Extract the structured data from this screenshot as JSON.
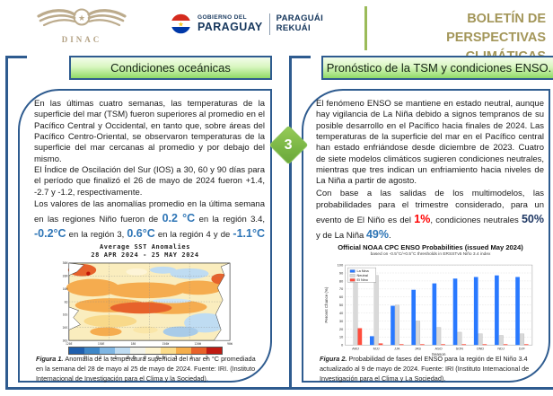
{
  "header": {
    "dinac_label": "DINAC",
    "government_logo": {
      "line1_small": "GOBIERNO DEL",
      "line1_large": "PARAGUAY",
      "line2_top": "PARAGUÁI",
      "line2_bottom": "REKUÁI"
    },
    "bulletin_title_line1": "BOLETÍN DE PERSPECTIVAS",
    "bulletin_title_line2": "CLIMÁTICAS"
  },
  "step_badge": "3",
  "colors": {
    "accent_navy": "#2E5B8F",
    "title_gold": "#A39659",
    "green_divider": "#9BBB59",
    "value_blue": "#2E75B6",
    "value_red": "#FF0000",
    "value_dark_navy": "#1F3864",
    "diamond_green": "#79b544"
  },
  "left_panel": {
    "section_title": "Condiciones oceánicas",
    "paragraph_1": "En las últimas cuatro semanas, las temperaturas de la superficie del mar (TSM) fueron superiores al promedio en el Pacífico Central y Occidental, en tanto que, sobre áreas del Pacífico Centro-Oriental, se observaron temperaturas de la superficie del mar cercanas al promedio y por debajo del mismo.",
    "paragraph_2": "El Índice de Oscilación del Sur (IOS) a 30, 60 y 90 días para el período que finalizó el 26 de mayo de 2024 fueron +1.4, -2.7 y -1.2, respectivamente.",
    "paragraph_3_segments": [
      {
        "text": "Los valores de las anomalías promedio en la última semana en las regiones Niño fueron de ",
        "style": "normal"
      },
      {
        "text": "0.2 °C",
        "style": "blue"
      },
      {
        "text": " en la región 3.4, ",
        "style": "normal"
      },
      {
        "text": "-0.2°C",
        "style": "blue"
      },
      {
        "text": " en la región 3, ",
        "style": "normal"
      },
      {
        "text": "0.6°C",
        "style": "blue"
      },
      {
        "text": " en la región 4 y de ",
        "style": "normal"
      },
      {
        "text": "-1.1°C",
        "style": "blue"
      },
      {
        "text": " en la región 1+2.",
        "style": "normal"
      }
    ],
    "figure_caption": {
      "label": "Figura 1.",
      "text": "Anomalía de la temperatura superficial del mar en °C promediada en la semana del 28 de mayo al 25 de mayo de 2024. Fuente: IRI. (Instituto Internacional de Investigación para el Clima y la Sociedad)."
    }
  },
  "right_panel": {
    "section_title": "Pronóstico de la TSM y condiciones ENSO.",
    "paragraph_1": "El fenómeno ENSO se mantiene en estado neutral, aunque hay vigilancia de La Niña debido a signos tempranos de su posible desarrollo en el Pacífico hacia finales de 2024. Las temperaturas de la superficie del mar en el Pacífico central han estado enfriándose desde diciembre de 2023. Cuatro de siete modelos climáticos sugieren condiciones neutrales, mientras que tres indican un enfriamiento hacia niveles de La Niña a partir de agosto.",
    "paragraph_2_segments": [
      {
        "text": "Con base a las salidas de los multimodelos, las probabilidades para el trimestre considerado, para un evento de El Niño es del ",
        "style": "normal"
      },
      {
        "text": "1%",
        "style": "red"
      },
      {
        "text": ", condiciones neutrales ",
        "style": "normal"
      },
      {
        "text": "50%",
        "style": "dark"
      },
      {
        "text": " y de La Niña ",
        "style": "normal"
      },
      {
        "text": "49%",
        "style": "blue"
      },
      {
        "text": ".",
        "style": "normal"
      }
    ],
    "figure_caption": {
      "label": "Figura 2.",
      "text": "Probabilidad de fases del ENSO para la región de El Niño 3.4 actualizado al 9 de mayo de 2024. Fuente: IRI (Instituto Internacional de Investigación para el Clima y La Sociedad)."
    }
  },
  "chart_data": [
    {
      "id": "sst_anomaly_map",
      "type": "heatmap",
      "title": "Average SST Anomalies",
      "subtitle": "28 APR 2024 - 25 MAY 2024",
      "lat_ticks": [
        "30N",
        "20N",
        "10N",
        "EQ",
        "10S",
        "20S",
        "30S"
      ],
      "lon_ticks": [
        "120E",
        "150E",
        "180",
        "150W",
        "120W",
        "90W"
      ],
      "colorbar": {
        "labels": [
          "-3",
          "-2",
          "-1",
          "-0.5",
          "0",
          "0.5",
          "1",
          "2",
          "3"
        ],
        "colors": [
          "#1F5FAE",
          "#3E87C8",
          "#7FB6E3",
          "#BFDCF2",
          "#F3F3EA",
          "#FDF3CE",
          "#FBDC8B",
          "#F5AE4C",
          "#E8622A",
          "#C01A12"
        ]
      },
      "grid": true
    },
    {
      "id": "enso_probabilities",
      "type": "bar",
      "title": "Official NOAA CPC ENSO Probabilities (issued May 2024)",
      "subtitle": "based on -0.5°C/+0.5°C thresholds in ERSSTv5 Niño 3.4 index",
      "xlabel": "Season",
      "ylabel": "Percent Chance (%)",
      "ylim": [
        0,
        100
      ],
      "grid": true,
      "legend_position": "top-left",
      "categories": [
        "AMJ",
        "MJJ",
        "JJA",
        "JAS",
        "ASO",
        "SON",
        "OND",
        "NDJ",
        "DJF"
      ],
      "series": [
        {
          "name": "La Nina",
          "color": "#2979FF",
          "values": [
            0,
            11,
            49,
            69,
            77,
            83,
            85,
            87,
            85
          ]
        },
        {
          "name": "Neutral",
          "color": "#D9D9D9",
          "values": [
            79,
            87,
            50,
            30,
            22,
            16,
            14,
            12,
            14
          ]
        },
        {
          "name": "El Nino",
          "color": "#FF4D3D",
          "values": [
            21,
            2,
            1,
            1,
            1,
            1,
            1,
            1,
            1
          ]
        }
      ]
    }
  ]
}
